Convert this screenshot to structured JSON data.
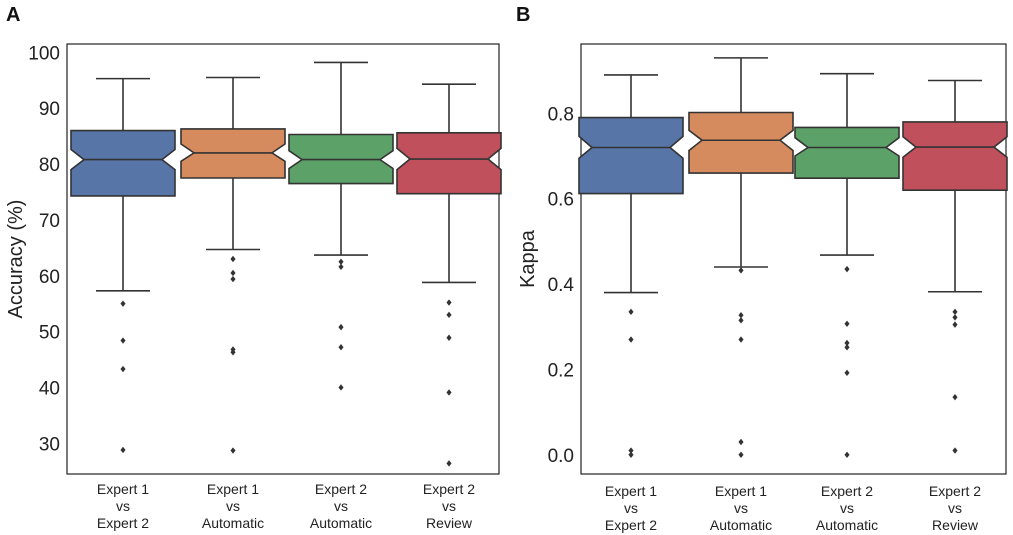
{
  "chart_data": [
    {
      "panel": "A",
      "type": "box",
      "notched": true,
      "ylabel": "Accuracy (%)",
      "xlabel": "",
      "ylim": [
        24.5,
        101.5
      ],
      "yticks": [
        30,
        40,
        50,
        60,
        70,
        80,
        90,
        100
      ],
      "categories": [
        [
          "Expert 1",
          "vs",
          "Expert 2"
        ],
        [
          "Expert 1",
          "vs",
          "Automatic"
        ],
        [
          "Expert 2",
          "vs",
          "Automatic"
        ],
        [
          "Expert 2",
          "vs",
          "Review"
        ]
      ],
      "colors": [
        "#5875a8",
        "#d58b5e",
        "#5ca268",
        "#c0505c"
      ],
      "boxes": [
        {
          "whislo": 57.3,
          "q1": 74.3,
          "med": 80.8,
          "q3": 86.0,
          "whishi": 95.3,
          "notch_lo": 79.0,
          "notch_hi": 82.6,
          "fliers": [
            55.0,
            48.4,
            43.3,
            28.8
          ]
        },
        {
          "whislo": 64.7,
          "q1": 77.5,
          "med": 82.0,
          "q3": 86.3,
          "whishi": 95.5,
          "notch_lo": 80.5,
          "notch_hi": 83.6,
          "fliers": [
            63.0,
            60.5,
            59.4,
            46.8,
            46.3,
            28.7
          ]
        },
        {
          "whislo": 63.7,
          "q1": 76.5,
          "med": 80.8,
          "q3": 85.3,
          "whishi": 98.2,
          "notch_lo": 79.2,
          "notch_hi": 82.4,
          "fliers": [
            62.5,
            61.6,
            50.8,
            47.2,
            40.0
          ]
        },
        {
          "whislo": 58.8,
          "q1": 74.7,
          "med": 80.9,
          "q3": 85.6,
          "whishi": 94.3,
          "notch_lo": 79.0,
          "notch_hi": 82.8,
          "fliers": [
            55.2,
            53.0,
            48.9,
            39.1,
            26.4
          ]
        }
      ]
    },
    {
      "panel": "B",
      "type": "box",
      "notched": true,
      "ylabel": "Kappa",
      "xlabel": "",
      "ylim": [
        -0.045,
        0.9625
      ],
      "yticks": [
        0.0,
        0.2,
        0.4,
        0.6,
        0.8
      ],
      "ytick_labels": [
        "0.0",
        "0.2",
        "0.4",
        "0.6",
        "0.8"
      ],
      "categories": [
        [
          "Expert 1",
          "vs",
          "Expert 2"
        ],
        [
          "Expert 1",
          "vs",
          "Automatic"
        ],
        [
          "Expert 2",
          "vs",
          "Automatic"
        ],
        [
          "Expert 2",
          "vs",
          "Review"
        ]
      ],
      "colors": [
        "#5875a8",
        "#d58b5e",
        "#5ca268",
        "#c0505c"
      ],
      "boxes": [
        {
          "whislo": 0.38,
          "q1": 0.612,
          "med": 0.72,
          "q3": 0.79,
          "whishi": 0.89,
          "notch_lo": 0.695,
          "notch_hi": 0.746,
          "fliers": [
            0.335,
            0.27,
            0.01,
            0.0
          ]
        },
        {
          "whislo": 0.44,
          "q1": 0.66,
          "med": 0.737,
          "q3": 0.802,
          "whishi": 0.93,
          "notch_lo": 0.713,
          "notch_hi": 0.76,
          "fliers": [
            0.432,
            0.327,
            0.315,
            0.27,
            0.03,
            0.0
          ]
        },
        {
          "whislo": 0.468,
          "q1": 0.648,
          "med": 0.72,
          "q3": 0.767,
          "whishi": 0.893,
          "notch_lo": 0.7,
          "notch_hi": 0.743,
          "fliers": [
            0.435,
            0.307,
            0.262,
            0.252,
            0.192,
            0.0
          ]
        },
        {
          "whislo": 0.382,
          "q1": 0.62,
          "med": 0.721,
          "q3": 0.78,
          "whishi": 0.877,
          "notch_lo": 0.697,
          "notch_hi": 0.745,
          "fliers": [
            0.335,
            0.322,
            0.305,
            0.135,
            0.01
          ]
        }
      ]
    }
  ],
  "panel_labels": {
    "a": "A",
    "b": "B"
  }
}
